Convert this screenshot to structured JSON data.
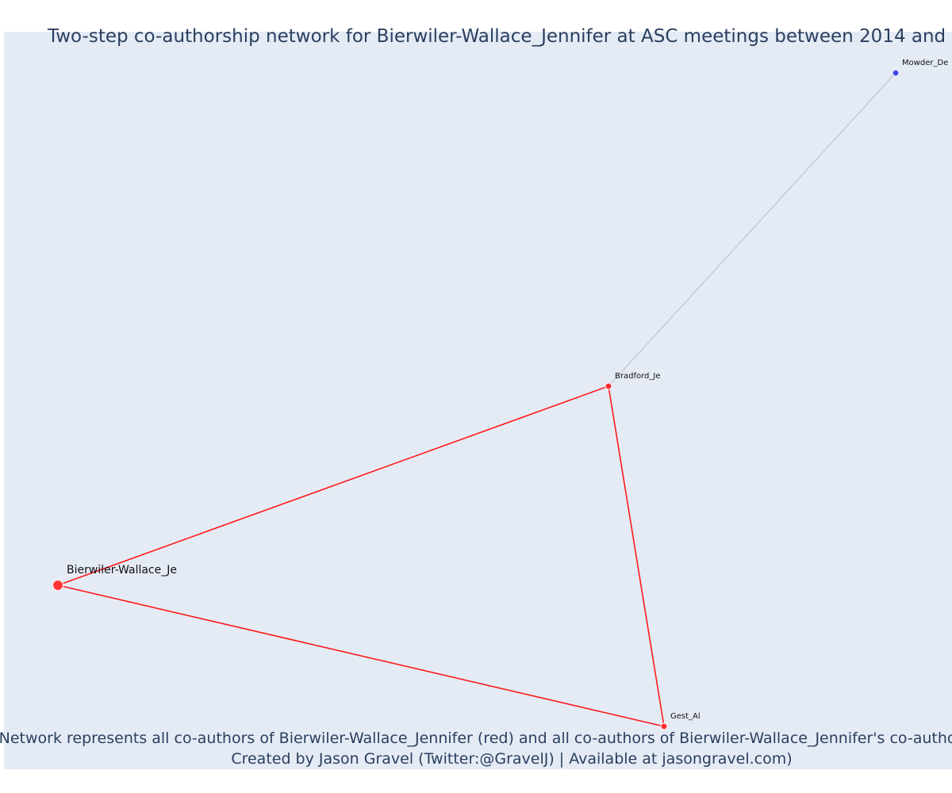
{
  "figure": {
    "title": "Two-step co-authorship network for Bierwiler-Wallace_Jennifer at ASC meetings between 2014 and",
    "caption_line1": "Network represents all co-authors of Bierwiler-Wallace_Jennifer (red) and all co-authors of Bierwiler-Wallace_Jennifer's co-author",
    "caption_line2": "Created by Jason Gravel (Twitter:@GravelJ) | Available at jasongravel.com)"
  },
  "colors": {
    "background": "#e5ebf5",
    "focal": "#ff3333",
    "coauthor": "#ff2b2b",
    "second_degree": "#4046e8",
    "edge_focal": "#ff1a1a",
    "edge_second": "#b8bccb"
  },
  "nodes": [
    {
      "id": "bierwiler",
      "label": "Bierwiler-Wallace_Je",
      "group": "focal"
    },
    {
      "id": "bradford",
      "label": "Bradford_Je",
      "group": "coauthor"
    },
    {
      "id": "gest",
      "label": "Gest_Al",
      "group": "coauthor"
    },
    {
      "id": "mowder",
      "label": "Mowder_De",
      "group": "second_degree"
    }
  ],
  "edges": [
    {
      "source": "bierwiler",
      "target": "bradford",
      "group": "focal"
    },
    {
      "source": "bierwiler",
      "target": "gest",
      "group": "focal"
    },
    {
      "source": "bradford",
      "target": "gest",
      "group": "focal"
    },
    {
      "source": "bradford",
      "target": "mowder",
      "group": "second_degree"
    }
  ]
}
